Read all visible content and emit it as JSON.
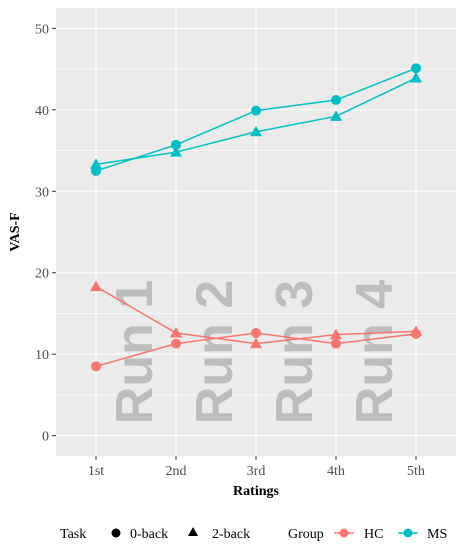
{
  "chart_data": {
    "type": "line",
    "xlabel": "Ratings",
    "ylabel": "VAS-F",
    "categories": [
      "1st",
      "2nd",
      "3rd",
      "4th",
      "5th"
    ],
    "ylim": [
      -2.5,
      52.5
    ],
    "yticks": [
      0,
      10,
      20,
      30,
      40,
      50
    ],
    "grid": true,
    "legend_position": "bottom",
    "series": [
      {
        "group": "MS",
        "task": "0-back",
        "values": [
          32.5,
          35.7,
          39.9,
          41.2,
          45.1
        ]
      },
      {
        "group": "MS",
        "task": "2-back",
        "values": [
          33.3,
          34.8,
          37.3,
          39.2,
          43.9
        ]
      },
      {
        "group": "HC",
        "task": "0-back",
        "values": [
          8.5,
          11.3,
          12.6,
          11.3,
          12.5
        ]
      },
      {
        "group": "HC",
        "task": "2-back",
        "values": [
          18.3,
          12.6,
          11.3,
          12.4,
          12.8
        ]
      }
    ],
    "annotations": [
      "Run 1",
      "Run 2",
      "Run 3",
      "Run 4"
    ],
    "legend": {
      "task_title": "Task",
      "task_items": [
        {
          "label": "0-back",
          "shape": "circle"
        },
        {
          "label": "2-back",
          "shape": "triangle"
        }
      ],
      "group_title": "Group",
      "group_items": [
        {
          "label": "HC",
          "color": "#F8766D"
        },
        {
          "label": "MS",
          "color": "#00BFC4"
        }
      ]
    }
  },
  "colors": {
    "panel_background": "#EBEBEB",
    "grid": "#FFFFFF",
    "HC": "#F8766D",
    "MS": "#00BFC4",
    "marker_key": "#000000",
    "watermark": "#BDBDBD"
  }
}
